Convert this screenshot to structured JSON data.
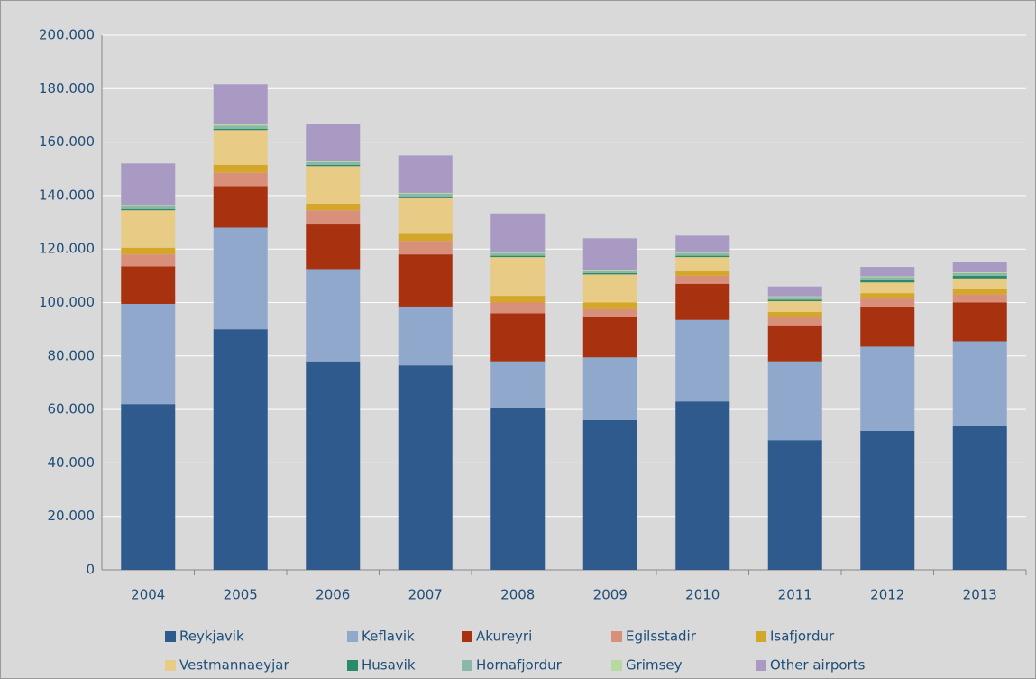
{
  "chart_data": {
    "type": "bar",
    "stacked": true,
    "categories": [
      "2004",
      "2005",
      "2006",
      "2007",
      "2008",
      "2009",
      "2010",
      "2011",
      "2012",
      "2013"
    ],
    "series": [
      {
        "name": "Reykjavik",
        "color": "#2e5a8e",
        "values": [
          62000,
          90000,
          78000,
          76500,
          60500,
          56000,
          63000,
          48500,
          52000,
          54000
        ]
      },
      {
        "name": "Keflavik",
        "color": "#8fa8cc",
        "values": [
          37500,
          38000,
          34500,
          22000,
          17500,
          23500,
          30500,
          29500,
          31500,
          31500
        ]
      },
      {
        "name": "Akureyri",
        "color": "#a8320f",
        "values": [
          14000,
          15500,
          17000,
          19500,
          18000,
          15000,
          13500,
          13500,
          15000,
          14500
        ]
      },
      {
        "name": "Egilsstadir",
        "color": "#d9907a",
        "values": [
          4500,
          5000,
          5000,
          5000,
          4000,
          3000,
          3000,
          3000,
          3000,
          3000
        ]
      },
      {
        "name": "Isafjordur",
        "color": "#d4a72a",
        "values": [
          2500,
          3000,
          2500,
          3000,
          2500,
          2500,
          2000,
          2000,
          2000,
          2000
        ]
      },
      {
        "name": "Vestmannaeyjar",
        "color": "#e8cc85",
        "values": [
          14000,
          13000,
          14000,
          13000,
          14500,
          10500,
          5000,
          4000,
          4000,
          4000
        ]
      },
      {
        "name": "Husavik",
        "color": "#2a8a6a",
        "values": [
          500,
          500,
          500,
          500,
          500,
          500,
          500,
          500,
          1000,
          1000
        ]
      },
      {
        "name": "Hornafjordur",
        "color": "#8ab8a8",
        "values": [
          1000,
          1200,
          1000,
          1200,
          1000,
          1000,
          1000,
          1000,
          1000,
          1000
        ]
      },
      {
        "name": "Grimsey",
        "color": "#b8d8a0",
        "values": [
          500,
          500,
          300,
          300,
          300,
          300,
          300,
          300,
          300,
          300
        ]
      },
      {
        "name": "Other airports",
        "color": "#a99ac4",
        "values": [
          15500,
          15000,
          14000,
          14000,
          14500,
          11700,
          6200,
          3700,
          3500,
          4000
        ]
      }
    ],
    "ylim": [
      0,
      200000
    ],
    "yticks": [
      0,
      {
        "value": 20000,
        "label": "20.000"
      },
      {
        "value": 40000,
        "label": "40.000"
      },
      {
        "value": 60000,
        "label": "60.000"
      },
      {
        "value": 80000,
        "label": "80.000"
      },
      {
        "value": 100000,
        "label": "100.000"
      },
      {
        "value": 120000,
        "label": "120.000"
      },
      {
        "value": 140000,
        "label": "140.000"
      },
      {
        "value": 160000,
        "label": "160.000"
      },
      {
        "value": 180000,
        "label": "180.000"
      },
      {
        "value": 200000,
        "label": "200.000"
      }
    ],
    "grid": true,
    "legend": "bottom"
  }
}
